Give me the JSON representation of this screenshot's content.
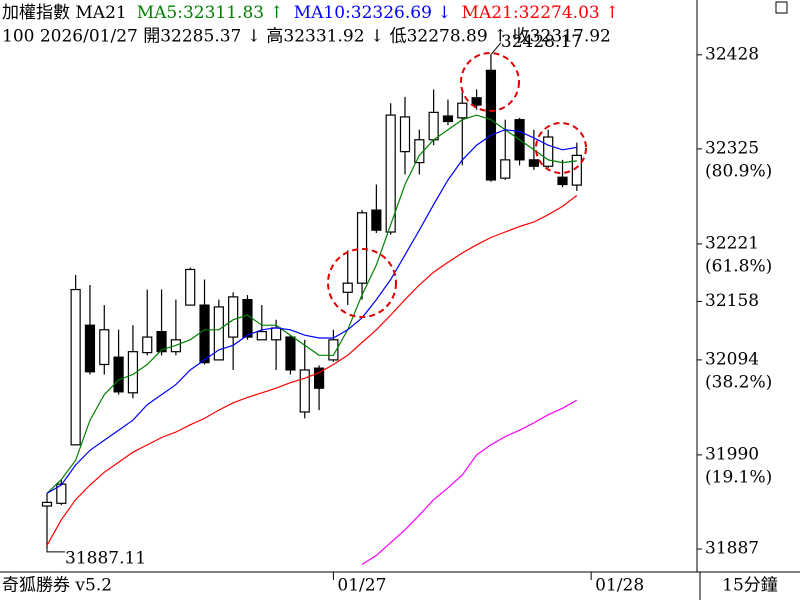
{
  "chart_data": {
    "type": "candlestick",
    "title": "加權指數 MA21",
    "subtitle": "100 2026/01/27 開32285.37 ↓ 高32331.92 ↓ 低32278.89 ↑ 收32317.92",
    "app_name": "奇狐勝券 v5.2",
    "period": "15分鐘",
    "categories": [
      null,
      null,
      null,
      null,
      null,
      null,
      null,
      null,
      null,
      null,
      null,
      null,
      null,
      null,
      null,
      null,
      null,
      null,
      null,
      null,
      "01/27",
      null,
      null,
      null,
      null,
      null,
      null,
      null,
      null,
      null,
      null,
      null,
      null,
      null,
      null,
      null,
      null,
      null
    ],
    "x_end_label": "01/28",
    "up_color": "#ffffff",
    "down_color": "#000000",
    "open": [
      31934,
      31937,
      32001,
      32132,
      32089,
      32097,
      32058,
      32102,
      32125,
      32103,
      32154,
      32154,
      32094,
      32119,
      32160,
      32116,
      32116,
      32119,
      32037,
      32085,
      32094,
      32168,
      32178,
      32258,
      32234,
      32322,
      32310,
      32335,
      32361,
      32359,
      32381,
      32411,
      32293,
      32357,
      32313,
      32306,
      32294,
      32285.37
    ],
    "high": [
      31948,
      31963,
      32187,
      32176,
      32154,
      32127,
      32132,
      32171,
      32171,
      32160,
      32195,
      32182,
      32160,
      32168,
      32165,
      32154,
      32138,
      32121,
      32116,
      32088,
      32127,
      32214,
      32258,
      32286,
      32375,
      32382,
      32346,
      32390,
      32379,
      32387,
      32390,
      32428.17,
      32357,
      32359,
      32346,
      32346,
      32313,
      32331.92
    ],
    "low": [
      31887.11,
      31935,
      32001,
      32078,
      32078,
      32056,
      32052,
      32099,
      32099,
      32099,
      32154,
      32089,
      32094,
      32083,
      32116,
      32116,
      32083,
      32078,
      32030,
      32039,
      32092,
      32154,
      32160,
      32233,
      32231,
      32297,
      32297,
      32329,
      32351,
      32307,
      32368,
      32289,
      32291,
      32307,
      32302,
      32304,
      32283,
      32278.89
    ],
    "close": [
      31938,
      31958,
      32171,
      32081,
      32127,
      32059,
      32103,
      32119,
      32103,
      32116,
      32193,
      32091,
      32152,
      32163,
      32119,
      32125,
      32129,
      32083,
      32083,
      32063,
      32116,
      32178,
      32255,
      32236,
      32362,
      32360,
      32335,
      32365,
      32355,
      32375,
      32373,
      32291,
      32313,
      32313,
      32306,
      32338,
      32286,
      32317.92
    ],
    "series": [
      {
        "name": "MA5:32311.83 ↑",
        "color": "#008000",
        "values": [
          31948,
          31963,
          31984,
          32028,
          32056,
          32072,
          32078,
          32089,
          32105,
          32110,
          32116,
          32127,
          32127,
          32138,
          32143,
          32132,
          32132,
          32121,
          32110,
          32099,
          32099,
          32127,
          32165,
          32198,
          32242,
          32286,
          32318,
          32335,
          32346,
          32357,
          32362,
          32357,
          32346,
          32335,
          32324,
          32313,
          32310,
          32311.83
        ]
      },
      {
        "name": "MA10:32326.69 ↓",
        "color": "#0000ff",
        "values": [
          31948,
          31957,
          31979,
          31995,
          32006,
          32017,
          32028,
          32045,
          32056,
          32067,
          32083,
          32094,
          32105,
          32110,
          32121,
          32127,
          32129,
          32127,
          32121,
          32118,
          32118,
          32127,
          32140,
          32160,
          32182,
          32209,
          32236,
          32264,
          32291,
          32313,
          32329,
          32340,
          32346,
          32344,
          32337,
          32329,
          32324,
          32326.69
        ]
      },
      {
        "name": "MA21:32274.03 ↑",
        "color": "#ff0000",
        "values": [
          31891,
          31919,
          31941,
          31957,
          31971,
          31982,
          31993,
          32001,
          32009,
          32015,
          32023,
          32030,
          32039,
          32047,
          32053,
          32058,
          32063,
          32069,
          32074,
          32080,
          32089,
          32099,
          32113,
          32127,
          32143,
          32160,
          32176,
          32190,
          32201,
          32211,
          32220,
          32228,
          32234,
          32240,
          32245,
          32253,
          32262,
          32274.03
        ]
      },
      {
        "color": "#ff00ff",
        "values": [
          null,
          null,
          null,
          null,
          null,
          null,
          null,
          null,
          null,
          null,
          null,
          null,
          null,
          null,
          null,
          null,
          null,
          null,
          null,
          null,
          null,
          null,
          31870,
          31880,
          31894,
          31908,
          31924,
          31941,
          31954,
          31968,
          31990,
          32001,
          32010,
          32017,
          32025,
          32034,
          32041,
          32050
        ]
      }
    ],
    "ylim": [
      31864,
      32488
    ],
    "yticks": [
      32428,
      32325,
      32221,
      32158,
      32094,
      31990,
      31887
    ],
    "retracements": [
      {
        "value": 32325,
        "label": "(80.9%)"
      },
      {
        "value": 32221,
        "label": "(61.8%)"
      },
      {
        "value": 32094,
        "label": "(38.2%)"
      },
      {
        "value": 31990,
        "label": "(19.1%)"
      }
    ]
  }
}
